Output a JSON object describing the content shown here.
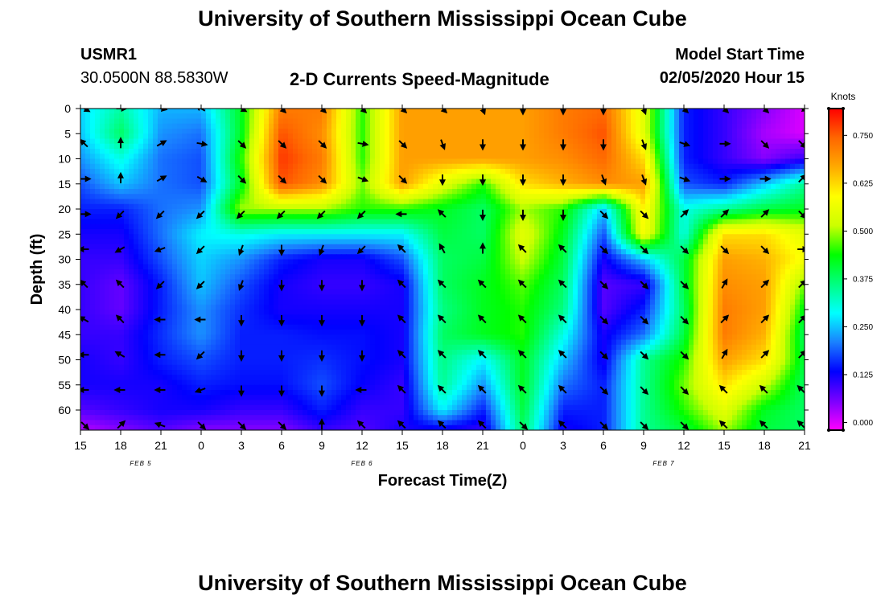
{
  "header": {
    "title_top": "University of Southern Mississippi Ocean Cube",
    "station": "USMR1",
    "coords": "30.0500N 88.5830W",
    "plot_title": "2-D Currents Speed-Magnitude",
    "model_label": "Model Start Time",
    "model_time": "02/05/2020 Hour 15",
    "title_bottom": "University of Southern Mississippi Ocean Cube"
  },
  "colors": {
    "scale": [
      "#ff00ff",
      "#7a00ff",
      "#0000ff",
      "#1a80ff",
      "#00ffff",
      "#00ff80",
      "#00ff00",
      "#ccff00",
      "#ffff00",
      "#ffaa00",
      "#ff6600",
      "#ff0000"
    ],
    "arrow": "#000000"
  },
  "chart_data": {
    "type": "heatmap",
    "xlabel": "Forecast Time(Z)",
    "ylabel": "Depth (ft)",
    "colorbar_label": "Knots",
    "colorbar_ticks": [
      "0.000",
      "0.125",
      "0.250",
      "0.375",
      "0.500",
      "0.625",
      "0.750"
    ],
    "colorbar_range": [
      -0.02,
      0.82
    ],
    "x_ticks": [
      "15",
      "18",
      "21",
      "0",
      "3",
      "6",
      "9",
      "12",
      "15",
      "18",
      "21",
      "0",
      "3",
      "6",
      "9",
      "12",
      "15",
      "18",
      "21"
    ],
    "x_hours_range": [
      0,
      54
    ],
    "date_labels": [
      {
        "text": "FEB 5",
        "hour": 4.5
      },
      {
        "text": "FEB 6",
        "hour": 21
      },
      {
        "text": "FEB 7",
        "hour": 43.5
      }
    ],
    "y_ticks": [
      0,
      5,
      10,
      15,
      20,
      25,
      30,
      35,
      40,
      45,
      50,
      55,
      60
    ],
    "ylim": [
      0,
      64
    ],
    "hours": [
      0,
      3,
      6,
      9,
      12,
      15,
      18,
      21,
      24,
      27,
      30,
      33,
      36,
      39,
      42,
      45,
      48,
      51,
      54
    ],
    "depths": [
      0,
      5,
      10,
      15,
      20,
      25,
      30,
      35,
      40,
      45,
      50,
      55,
      60,
      64
    ],
    "speed": [
      [
        0.26,
        0.34,
        0.24,
        0.24,
        0.42,
        0.72,
        0.72,
        0.45,
        0.68,
        0.68,
        0.68,
        0.68,
        0.72,
        0.74,
        0.55,
        0.15,
        0.1,
        0.05,
        0.0
      ],
      [
        0.25,
        0.38,
        0.22,
        0.2,
        0.42,
        0.76,
        0.7,
        0.45,
        0.68,
        0.68,
        0.68,
        0.68,
        0.72,
        0.76,
        0.55,
        0.15,
        0.1,
        0.03,
        0.0
      ],
      [
        0.22,
        0.3,
        0.2,
        0.18,
        0.45,
        0.78,
        0.72,
        0.45,
        0.68,
        0.68,
        0.68,
        0.68,
        0.7,
        0.74,
        0.62,
        0.15,
        0.1,
        0.05,
        0.1
      ],
      [
        0.18,
        0.25,
        0.2,
        0.18,
        0.42,
        0.76,
        0.7,
        0.48,
        0.68,
        0.55,
        0.45,
        0.62,
        0.66,
        0.7,
        0.68,
        0.18,
        0.15,
        0.25,
        0.35
      ],
      [
        0.15,
        0.15,
        0.2,
        0.22,
        0.5,
        0.5,
        0.5,
        0.45,
        0.45,
        0.42,
        0.38,
        0.5,
        0.45,
        0.25,
        0.6,
        0.3,
        0.35,
        0.4,
        0.42
      ],
      [
        0.12,
        0.12,
        0.2,
        0.28,
        0.3,
        0.28,
        0.28,
        0.28,
        0.28,
        0.4,
        0.38,
        0.55,
        0.42,
        0.18,
        0.58,
        0.3,
        0.62,
        0.62,
        0.55
      ],
      [
        0.1,
        0.1,
        0.18,
        0.26,
        0.22,
        0.15,
        0.12,
        0.12,
        0.18,
        0.38,
        0.4,
        0.52,
        0.4,
        0.12,
        0.25,
        0.4,
        0.68,
        0.66,
        0.58
      ],
      [
        0.1,
        0.07,
        0.15,
        0.25,
        0.18,
        0.12,
        0.1,
        0.1,
        0.12,
        0.38,
        0.42,
        0.47,
        0.38,
        0.08,
        0.1,
        0.4,
        0.7,
        0.68,
        0.48
      ],
      [
        0.1,
        0.07,
        0.15,
        0.22,
        0.16,
        0.12,
        0.12,
        0.12,
        0.12,
        0.36,
        0.42,
        0.45,
        0.36,
        0.08,
        0.15,
        0.38,
        0.72,
        0.68,
        0.42
      ],
      [
        0.1,
        0.1,
        0.16,
        0.22,
        0.15,
        0.15,
        0.14,
        0.14,
        0.12,
        0.38,
        0.42,
        0.45,
        0.3,
        0.12,
        0.2,
        0.4,
        0.72,
        0.66,
        0.38
      ],
      [
        0.12,
        0.1,
        0.15,
        0.18,
        0.15,
        0.15,
        0.16,
        0.14,
        0.12,
        0.36,
        0.28,
        0.42,
        0.25,
        0.12,
        0.35,
        0.45,
        0.68,
        0.62,
        0.4
      ],
      [
        0.12,
        0.12,
        0.12,
        0.15,
        0.14,
        0.14,
        0.18,
        0.13,
        0.1,
        0.35,
        0.22,
        0.42,
        0.2,
        0.15,
        0.35,
        0.48,
        0.62,
        0.52,
        0.38
      ],
      [
        0.08,
        0.1,
        0.12,
        0.12,
        0.1,
        0.1,
        0.15,
        0.1,
        0.1,
        0.28,
        0.15,
        0.4,
        0.15,
        0.15,
        0.35,
        0.45,
        0.55,
        0.42,
        0.38
      ],
      [
        0.02,
        0.05,
        0.08,
        0.05,
        0.05,
        0.05,
        0.1,
        0.08,
        0.12,
        0.12,
        0.1,
        0.38,
        0.12,
        0.15,
        0.35,
        0.4,
        0.5,
        0.4,
        0.38
      ]
    ],
    "vector_hours": [
      0.3,
      3,
      6,
      9,
      12,
      15,
      18,
      21,
      24,
      27,
      30,
      33,
      36,
      39,
      42,
      45,
      48,
      51,
      53.8
    ],
    "vector_depths": [
      0,
      7,
      14,
      21,
      28,
      35,
      42,
      49,
      56,
      63
    ],
    "direction_deg": [
      [
        120,
        90,
        100,
        300,
        120,
        135,
        135,
        135,
        135,
        135,
        160,
        180,
        180,
        180,
        160,
        135,
        135,
        135,
        110
      ],
      [
        315,
        0,
        60,
        100,
        135,
        135,
        135,
        100,
        135,
        160,
        180,
        180,
        180,
        180,
        160,
        110,
        90,
        135,
        135
      ],
      [
        90,
        0,
        60,
        120,
        135,
        135,
        135,
        110,
        135,
        180,
        180,
        180,
        180,
        160,
        160,
        110,
        90,
        90,
        45
      ],
      [
        90,
        225,
        225,
        225,
        225,
        225,
        225,
        225,
        270,
        315,
        180,
        180,
        180,
        135,
        135,
        45,
        45,
        45,
        135
      ],
      [
        270,
        240,
        250,
        225,
        200,
        180,
        200,
        225,
        315,
        330,
        0,
        315,
        315,
        135,
        135,
        135,
        135,
        135,
        90
      ],
      [
        315,
        315,
        225,
        225,
        200,
        180,
        180,
        180,
        315,
        315,
        315,
        315,
        315,
        135,
        135,
        135,
        30,
        45,
        45
      ],
      [
        300,
        315,
        270,
        270,
        180,
        180,
        180,
        180,
        315,
        315,
        315,
        315,
        315,
        135,
        135,
        135,
        45,
        45,
        45
      ],
      [
        270,
        300,
        270,
        225,
        180,
        180,
        180,
        180,
        315,
        315,
        315,
        315,
        315,
        135,
        135,
        135,
        30,
        45,
        45
      ],
      [
        270,
        270,
        270,
        250,
        180,
        180,
        180,
        270,
        315,
        315,
        315,
        315,
        315,
        135,
        135,
        135,
        315,
        315,
        315
      ],
      [
        135,
        45,
        290,
        135,
        135,
        135,
        0,
        315,
        315,
        315,
        315,
        135,
        315,
        135,
        135,
        135,
        315,
        315,
        315
      ]
    ]
  }
}
